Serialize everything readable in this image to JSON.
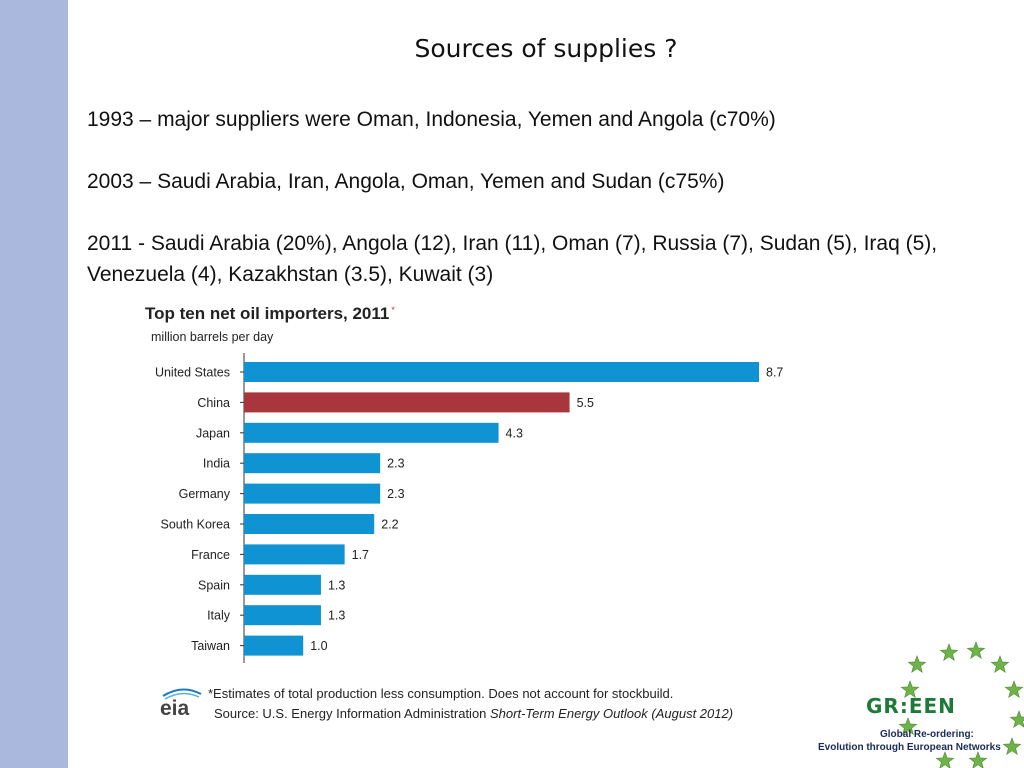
{
  "slide": {
    "title": "Sources of supplies ?",
    "paragraphs": [
      "1993 – major suppliers were Oman, Indonesia, Yemen and Angola (c70%)",
      "2003 – Saudi Arabia, Iran, Angola, Oman, Yemen and Sudan (c75%)",
      "2011 - Saudi Arabia (20%), Angola (12), Iran (11), Oman (7), Russia (7), Sudan (5), Iraq (5), Venezuela (4), Kazakhstan (3.5), Kuwait (3)"
    ]
  },
  "chart_data": {
    "type": "bar",
    "orientation": "horizontal",
    "title": "Top ten net oil importers, 2011",
    "title_mark": "*",
    "subtitle": "million barrels per day",
    "categories": [
      "United States",
      "China",
      "Japan",
      "India",
      "Germany",
      "South Korea",
      "France",
      "Spain",
      "Italy",
      "Taiwan"
    ],
    "values": [
      8.7,
      5.5,
      4.3,
      2.3,
      2.3,
      2.2,
      1.7,
      1.3,
      1.3,
      1.0
    ],
    "value_labels": [
      "8.7",
      "5.5",
      "4.3",
      "2.3",
      "2.3",
      "2.2",
      "1.7",
      "1.3",
      "1.3",
      "1.0"
    ],
    "highlight_category": "China",
    "colors": {
      "bar": "#0f93d2",
      "highlight": "#a8363c",
      "axis": "#333333"
    },
    "xlim": [
      0,
      8.7
    ],
    "grid": false,
    "legend": "none"
  },
  "footer": {
    "logo_text": "eia",
    "footnote": "*Estimates of total production less consumption. Does not account for stockbuild.",
    "source_prefix": "Source: U.S. Energy Information Administration ",
    "source_publication": "Short-Term Energy Outlook (August 2012)"
  },
  "branding": {
    "name": "GR:EEN",
    "tagline_1": "Global Re-ordering:",
    "tagline_2": "Evolution through European Networks",
    "star_color": "#6fb24a"
  }
}
